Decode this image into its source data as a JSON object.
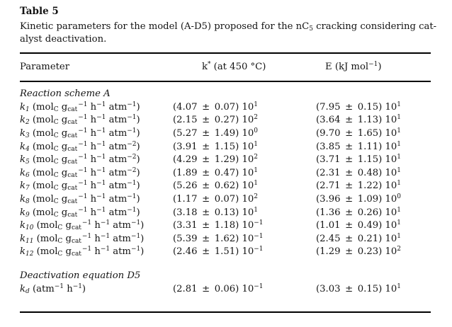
{
  "page": {
    "background": "#ffffff",
    "text_color": "#141414",
    "rule_color": "#000000"
  },
  "table": {
    "label": "Table 5",
    "caption_lines": [
      "Kinetic parameters for the model (A-D5) proposed for the nC_{5} cracking considering cat-",
      "alyst deactivation."
    ],
    "columns": {
      "param": "Parameter",
      "k": "k^{*} (at 450 °C)",
      "e": "E (kJ mol^{−1})"
    },
    "sections": [
      {
        "heading": "Reaction scheme A",
        "rows": [
          {
            "param": "*k_{1}* (mol_{C} g_{cat}^{−1} h^{−1} atm^{−1})",
            "k": "(4.07 ± 0.07) 10^{1}",
            "e": "(7.95 ± 0.15) 10^{1}"
          },
          {
            "param": "*k_{2}* (mol_{C} g_{cat}^{−1} h^{−1} atm^{−1})",
            "k": "(2.15 ± 0.27) 10^{2}",
            "e": "(3.64 ± 1.13) 10^{1}"
          },
          {
            "param": "*k_{3}* (mol_{C} g_{cat}^{−1} h^{−1} atm^{−1})",
            "k": "(5.27 ± 1.49) 10^{0}",
            "e": "(9.70 ± 1.65) 10^{1}"
          },
          {
            "param": "*k_{4}* (mol_{C} g_{cat}^{−1} h^{−1} atm^{−2})",
            "k": "(3.91 ± 1.15) 10^{1}",
            "e": "(3.85 ± 1.11) 10^{1}"
          },
          {
            "param": "*k_{5}* (mol_{C} g_{cat}^{−1} h^{−1} atm^{−2})",
            "k": "(4.29 ± 1.29) 10^{2}",
            "e": "(3.71 ± 1.15) 10^{1}"
          },
          {
            "param": "*k_{6}* (mol_{C} g_{cat}^{−1} h^{−1} atm^{−2})",
            "k": "(1.89 ± 0.47) 10^{1}",
            "e": "(2.31 ± 0.48) 10^{1}"
          },
          {
            "param": "*k_{7}* (mol_{C} g_{cat}^{−1} h^{−1} atm^{−1})",
            "k": "(5.26 ± 0.62) 10^{1}",
            "e": "(2.71 ± 1.22) 10^{1}"
          },
          {
            "param": "*k_{8}* (mol_{C} g_{cat}^{−1} h^{−1} atm^{−1})",
            "k": "(1.17 ± 0.07) 10^{2}",
            "e": "(3.96 ± 1.09) 10^{0}"
          },
          {
            "param": "*k_{9}* (mol_{C} g_{cat}^{−1} h^{−1} atm^{−1})",
            "k": "(3.18 ± 0.13) 10^{1}",
            "e": "(1.36 ± 0.26) 10^{1}"
          },
          {
            "param": "*k_{10}* (mol_{C} g_{cat}^{−1} h^{−1} atm^{−1})",
            "k": "(3.31 ± 1.18) 10^{−1}",
            "e": "(1.01 ± 0.49) 10^{1}"
          },
          {
            "param": "*k_{11}* (mol_{C} g_{cat}^{−1} h^{−1} atm^{−1})",
            "k": "(5.39 ± 1.62) 10^{−1}",
            "e": "(2.45 ± 0.21) 10^{1}"
          },
          {
            "param": "*k_{12}* (mol_{C} g_{cat}^{−1} h^{−1} atm^{−1})",
            "k": "(2.46 ± 1.51) 10^{−1}",
            "e": "(1.29 ± 0.23) 10^{2}"
          }
        ]
      },
      {
        "heading": "Deactivation equation D5",
        "rows": [
          {
            "param": "*k_{d}* (atm^{−1} h^{−1})",
            "k": "(2.81 ± 0.06) 10^{−1}",
            "e": "(3.03 ± 0.15) 10^{1}"
          }
        ]
      }
    ]
  }
}
